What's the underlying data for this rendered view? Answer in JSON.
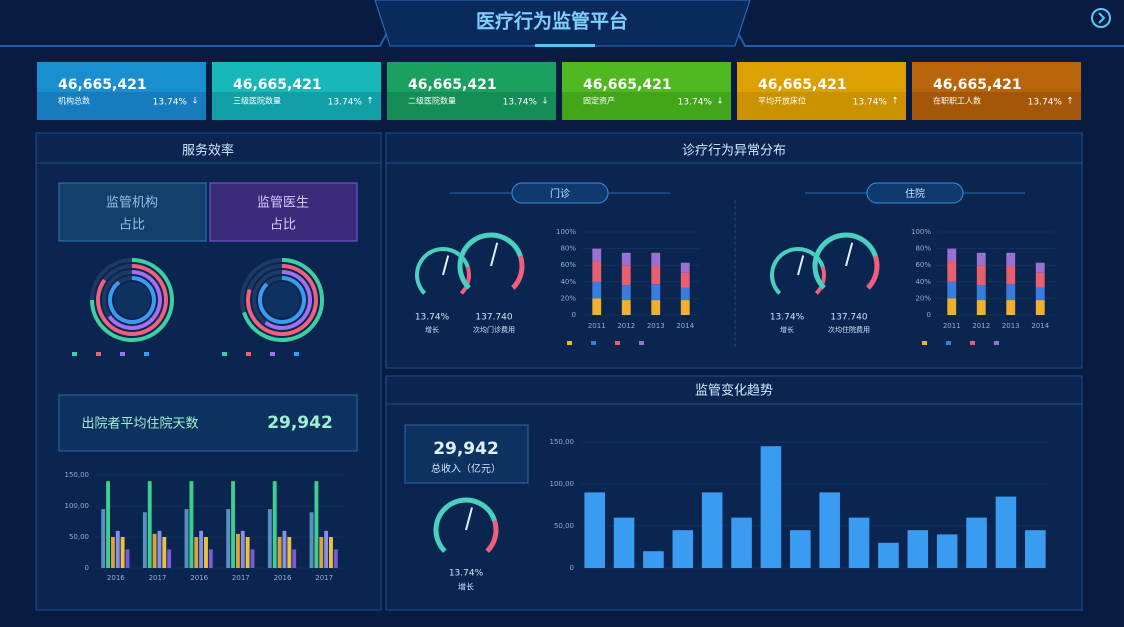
{
  "header": {
    "title": "医疗行为监管平台"
  },
  "kpis": [
    {
      "value": "46,665,421",
      "label": "机构总数",
      "change": "13.74%",
      "trend": "↓"
    },
    {
      "value": "46,665,421",
      "label": "三级医院数量",
      "change": "13.74%",
      "trend": "↑"
    },
    {
      "value": "46,665,421",
      "label": "二级医院数量",
      "change": "13.74%",
      "trend": "↓"
    },
    {
      "value": "46,665,421",
      "label": "固定资产",
      "change": "13.74%",
      "trend": "↓"
    },
    {
      "value": "46,665,421",
      "label": "平均开放床位",
      "change": "13.74%",
      "trend": "↑"
    },
    {
      "value": "46,665,421",
      "label": "在职职工人数",
      "change": "13.74%",
      "trend": "↑"
    }
  ],
  "service": {
    "title": "服务效率",
    "buttons": [
      [
        "监管机构",
        "占比"
      ],
      [
        "监管医生",
        "占比"
      ]
    ]
  },
  "stay": {
    "label": "出院者平均住院天数",
    "value": "29,942"
  },
  "abnormal": {
    "title": "诊疗行为异常分布",
    "sections": [
      {
        "name": "门诊",
        "rate": "13.74%",
        "rate_label": "增长",
        "cost": "137.740",
        "cost_label": "次均门诊费用"
      },
      {
        "name": "住院",
        "rate": "13.74%",
        "rate_label": "增长",
        "cost": "137.740",
        "cost_label": "次均住院费用"
      }
    ]
  },
  "trend": {
    "title": "监管变化趋势",
    "total": "29,942",
    "total_label": "总收入（亿元）",
    "rate": "13.74%",
    "rate_label": "增长"
  },
  "chart_data": [
    {
      "type": "rings",
      "values": [
        75,
        85,
        65,
        90
      ],
      "colors": [
        "#3ecfa0",
        "#f0607a",
        "#a070f0",
        "#3a9cf0"
      ]
    },
    {
      "type": "rings",
      "values": [
        70,
        80,
        60,
        88
      ],
      "colors": [
        "#3ecfa0",
        "#f0607a",
        "#a070f0",
        "#3a9cf0"
      ]
    },
    {
      "type": "bar",
      "categories": [
        "2016",
        "2017",
        "2016",
        "2017",
        "2016",
        "2017"
      ],
      "series": [
        {
          "color": "#5a8fc0",
          "values": [
            95,
            90,
            95,
            95,
            95,
            90
          ]
        },
        {
          "color": "#3ecf8e",
          "values": [
            140,
            140,
            140,
            140,
            140,
            140
          ]
        },
        {
          "color": "#d9a23a",
          "values": [
            50,
            55,
            50,
            55,
            50,
            50
          ]
        },
        {
          "color": "#8a90e0",
          "values": [
            60,
            60,
            60,
            60,
            60,
            60
          ]
        },
        {
          "color": "#e8c240",
          "values": [
            50,
            50,
            50,
            50,
            50,
            50
          ]
        },
        {
          "color": "#7a5ad8",
          "values": [
            30,
            30,
            30,
            30,
            30,
            30
          ]
        }
      ],
      "ylim": [
        0,
        150
      ],
      "yticks": [
        0,
        {
          "value": 50,
          "label": "50,00"
        },
        {
          "value": 100,
          "label": "100,00"
        },
        {
          "value": 150,
          "label": "150,00"
        }
      ]
    },
    {
      "type": "stacked",
      "categories": [
        "2011",
        "2012",
        "2013",
        "2014"
      ],
      "series": [
        {
          "color": "#f0b030",
          "values": [
            20,
            18,
            18,
            18
          ]
        },
        {
          "color": "#3a7ce0",
          "values": [
            20,
            18,
            19,
            15
          ]
        },
        {
          "color": "#e86070",
          "values": [
            25,
            24,
            22,
            18
          ]
        },
        {
          "color": "#9a70d0",
          "values": [
            15,
            15,
            16,
            12
          ]
        }
      ],
      "ylim": [
        0,
        100
      ],
      "yticks": [
        0,
        {
          "value": 20,
          "label": "20%"
        },
        {
          "value": 40,
          "label": "40%"
        },
        {
          "value": 60,
          "label": "60%"
        },
        {
          "value": 80,
          "label": "80%"
        },
        {
          "value": 100,
          "label": "100%"
        }
      ]
    },
    {
      "type": "stacked",
      "categories": [
        "2011",
        "2012",
        "2013",
        "2014"
      ],
      "series": [
        {
          "color": "#f0b030",
          "values": [
            20,
            18,
            18,
            18
          ]
        },
        {
          "color": "#3a7ce0",
          "values": [
            20,
            18,
            19,
            15
          ]
        },
        {
          "color": "#e86070",
          "values": [
            25,
            24,
            22,
            18
          ]
        },
        {
          "color": "#9a70d0",
          "values": [
            15,
            15,
            16,
            12
          ]
        }
      ],
      "ylim": [
        0,
        100
      ],
      "yticks": [
        0,
        {
          "value": 20,
          "label": "20%"
        },
        {
          "value": 40,
          "label": "40%"
        },
        {
          "value": 60,
          "label": "60%"
        },
        {
          "value": 80,
          "label": "80%"
        },
        {
          "value": 100,
          "label": "100%"
        }
      ]
    },
    {
      "type": "bar",
      "series": [
        {
          "color": "#3a9cf0",
          "values": [
            90,
            60,
            20,
            45,
            90,
            60,
            145,
            45,
            90,
            60,
            30,
            45,
            40,
            60,
            85,
            45
          ]
        }
      ],
      "ylim": [
        0,
        150
      ],
      "yticks": [
        0,
        {
          "value": 50,
          "label": "50,00"
        },
        {
          "value": 100,
          "label": "100,00"
        },
        {
          "value": 150,
          "label": "150,00"
        }
      ]
    }
  ]
}
